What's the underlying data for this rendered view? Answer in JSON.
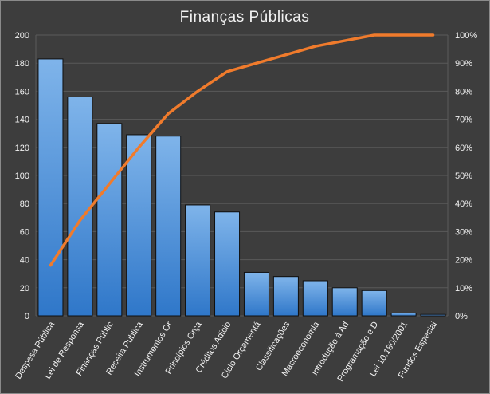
{
  "chart_data": {
    "type": "bar",
    "title": "Finanças  Públicas",
    "xlabel": "",
    "ylabel": "",
    "categories": [
      "Despesa Pública",
      "Lei de Responsa",
      "Finanças Públic",
      "Receita Pública",
      "Instrumentos Or",
      "Princípios Orça",
      "Créditos Adicio",
      "Ciclo Orçamentá",
      "Classificações",
      "Macroeconomia",
      "Introdução à Ad",
      "Programação e D",
      "Lei 10.180/2001",
      "Fundos Especiai"
    ],
    "series": [
      {
        "type": "bar",
        "axis": "left",
        "values": [
          183,
          156,
          137,
          129,
          128,
          79,
          74,
          31,
          28,
          25,
          20,
          18,
          2,
          1
        ]
      },
      {
        "type": "line",
        "axis": "right",
        "values": [
          18,
          34,
          47,
          60,
          72,
          80,
          87,
          90,
          93,
          96,
          98,
          100,
          100,
          100
        ]
      }
    ],
    "ylim": [
      0,
      200
    ],
    "yticks": [
      0,
      20,
      40,
      60,
      80,
      100,
      120,
      140,
      160,
      180,
      200
    ],
    "y2lim": [
      0,
      100
    ],
    "y2ticks": [
      "0%",
      "10%",
      "20%",
      "30%",
      "40%",
      "50%",
      "60%",
      "70%",
      "80%",
      "90%",
      "100%"
    ],
    "grid": true,
    "legend": "none",
    "colors": {
      "background": "#3d3d3d",
      "bar_fill_top": "#7fb4ea",
      "bar_fill_bottom": "#2f77c9",
      "bar_stroke": "#0f0f0f",
      "line": "#f07b2c",
      "grid": "#5a5a5a",
      "text": "#f2f2f2"
    }
  }
}
